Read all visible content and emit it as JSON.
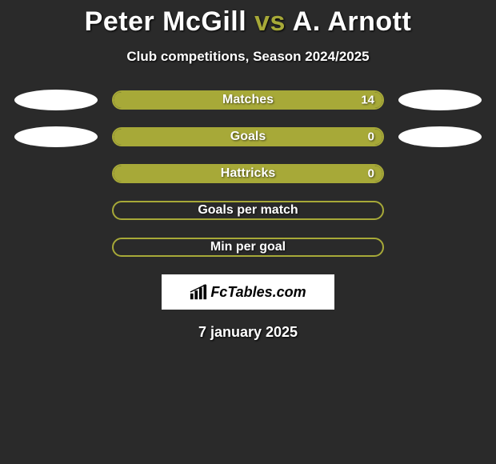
{
  "title": {
    "player1": "Peter McGill",
    "vs": "vs",
    "player2": "A. Arnott"
  },
  "subtitle": "Club competitions, Season 2024/2025",
  "colors": {
    "accent": "#a7a938",
    "background": "#2a2a2a",
    "ellipse": "#ffffff",
    "text": "#ffffff"
  },
  "rows": [
    {
      "label": "Matches",
      "value": "14",
      "fill_pct": 100,
      "left_ellipse": true,
      "right_ellipse": true
    },
    {
      "label": "Goals",
      "value": "0",
      "fill_pct": 100,
      "left_ellipse": true,
      "right_ellipse": true
    },
    {
      "label": "Hattricks",
      "value": "0",
      "fill_pct": 100,
      "left_ellipse": false,
      "right_ellipse": false
    },
    {
      "label": "Goals per match",
      "value": "",
      "fill_pct": 0,
      "left_ellipse": false,
      "right_ellipse": false
    },
    {
      "label": "Min per goal",
      "value": "",
      "fill_pct": 0,
      "left_ellipse": false,
      "right_ellipse": false
    }
  ],
  "logo": {
    "text": "FcTables.com"
  },
  "date": "7 january 2025"
}
